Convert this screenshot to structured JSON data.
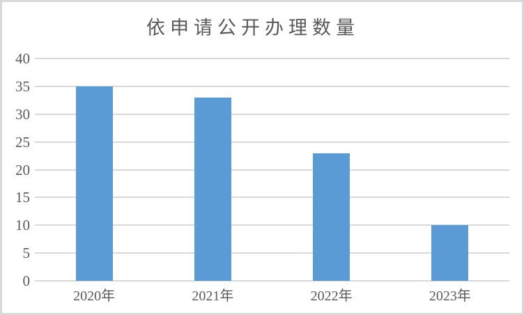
{
  "chart_data": {
    "type": "bar",
    "title": "依申请公开办理数量",
    "categories": [
      "2020年",
      "2021年",
      "2022年",
      "2023年"
    ],
    "values": [
      35,
      33,
      23,
      10
    ],
    "xlabel": "",
    "ylabel": "",
    "ylim": [
      0,
      40
    ],
    "yticks": [
      0,
      5,
      10,
      15,
      20,
      25,
      30,
      35,
      40
    ],
    "grid": true,
    "legend": false,
    "colors": {
      "bar": "#5B9BD5",
      "gridline": "#D9D9D9",
      "axis_line": "#D9D9D9",
      "text": "#595959",
      "border": "#D9D9D9",
      "background": "#FFFFFF"
    }
  }
}
